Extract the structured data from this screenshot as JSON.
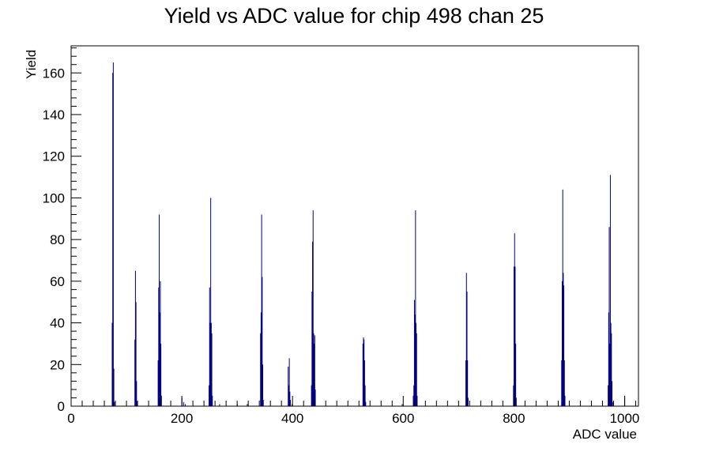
{
  "chart_data": {
    "type": "histogram",
    "title": "Yield vs ADC value for chip 498 chan 25",
    "xlabel": "ADC value",
    "ylabel": "Yield",
    "xlim": [
      0,
      1025
    ],
    "ylim": [
      0,
      173
    ],
    "x_ticks": [
      "0",
      "200",
      "400",
      "600",
      "800",
      "1000"
    ],
    "y_ticks": [
      "0",
      "20",
      "40",
      "60",
      "80",
      "100",
      "120",
      "140",
      "160"
    ],
    "grid": false,
    "series_color": "#000080",
    "bins": [
      [
        74,
        40
      ],
      [
        75,
        160
      ],
      [
        76,
        165
      ],
      [
        77,
        18
      ],
      [
        78,
        2
      ],
      [
        115,
        32
      ],
      [
        116,
        65
      ],
      [
        117,
        50
      ],
      [
        118,
        12
      ],
      [
        119,
        2
      ],
      [
        157,
        22
      ],
      [
        158,
        57
      ],
      [
        159,
        92
      ],
      [
        160,
        45
      ],
      [
        161,
        60
      ],
      [
        162,
        30
      ],
      [
        163,
        5
      ],
      [
        200,
        4
      ],
      [
        203,
        2
      ],
      [
        206,
        1
      ],
      [
        249,
        10
      ],
      [
        250,
        57
      ],
      [
        251,
        40
      ],
      [
        252,
        100
      ],
      [
        253,
        40
      ],
      [
        254,
        35
      ],
      [
        255,
        5
      ],
      [
        268,
        1
      ],
      [
        300,
        1
      ],
      [
        318,
        1
      ],
      [
        342,
        35
      ],
      [
        343,
        45
      ],
      [
        344,
        92
      ],
      [
        345,
        62
      ],
      [
        346,
        20
      ],
      [
        347,
        3
      ],
      [
        392,
        19
      ],
      [
        393,
        10
      ],
      [
        394,
        23
      ],
      [
        395,
        7
      ],
      [
        396,
        3
      ],
      [
        399,
        1
      ],
      [
        434,
        10
      ],
      [
        435,
        55
      ],
      [
        436,
        79
      ],
      [
        437,
        94
      ],
      [
        438,
        35
      ],
      [
        439,
        30
      ],
      [
        440,
        34
      ],
      [
        441,
        8
      ],
      [
        527,
        30
      ],
      [
        528,
        33
      ],
      [
        529,
        32
      ],
      [
        530,
        22
      ],
      [
        531,
        10
      ],
      [
        532,
        2
      ],
      [
        598,
        1
      ],
      [
        618,
        5
      ],
      [
        619,
        10
      ],
      [
        620,
        51
      ],
      [
        621,
        44
      ],
      [
        622,
        94
      ],
      [
        623,
        40
      ],
      [
        624,
        35
      ],
      [
        625,
        5
      ],
      [
        713,
        22
      ],
      [
        714,
        64
      ],
      [
        715,
        55
      ],
      [
        716,
        22
      ],
      [
        717,
        4
      ],
      [
        799,
        10
      ],
      [
        800,
        67
      ],
      [
        801,
        83
      ],
      [
        802,
        67
      ],
      [
        803,
        30
      ],
      [
        804,
        4
      ],
      [
        886,
        22
      ],
      [
        887,
        60
      ],
      [
        888,
        104
      ],
      [
        889,
        64
      ],
      [
        890,
        58
      ],
      [
        891,
        22
      ],
      [
        892,
        5
      ],
      [
        970,
        10
      ],
      [
        971,
        45
      ],
      [
        972,
        86
      ],
      [
        973,
        30
      ],
      [
        974,
        111
      ],
      [
        975,
        40
      ],
      [
        976,
        35
      ],
      [
        977,
        12
      ],
      [
        978,
        2
      ],
      [
        1000,
        5
      ]
    ]
  }
}
